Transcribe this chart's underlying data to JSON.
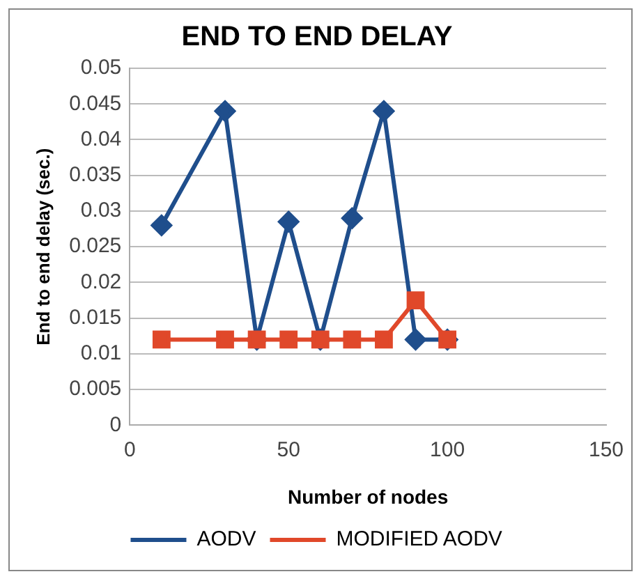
{
  "chart_data": {
    "type": "line",
    "title": "END TO END DELAY",
    "xlabel": "Number of nodes",
    "ylabel": "End to end delay (sec.)",
    "x": [
      10,
      30,
      40,
      50,
      60,
      70,
      80,
      90,
      100
    ],
    "series": [
      {
        "name": "AODV",
        "color": "#1f4e8c",
        "marker": "diamond",
        "values": [
          0.028,
          0.044,
          0.012,
          0.0285,
          0.012,
          0.029,
          0.044,
          0.012,
          0.012
        ]
      },
      {
        "name": "MODIFIED AODV",
        "color": "#e0482a",
        "marker": "square",
        "values": [
          0.012,
          0.012,
          0.012,
          0.012,
          0.012,
          0.012,
          0.012,
          0.0175,
          0.012
        ]
      }
    ],
    "xlim": [
      0,
      150
    ],
    "xticks": [
      0,
      50,
      100,
      150
    ],
    "ylim": [
      0,
      0.05
    ],
    "yticks": [
      0,
      0.005,
      0.01,
      0.015,
      0.02,
      0.025,
      0.03,
      0.035,
      0.04,
      0.045,
      0.05
    ],
    "grid": "y",
    "legend": "bottom"
  }
}
